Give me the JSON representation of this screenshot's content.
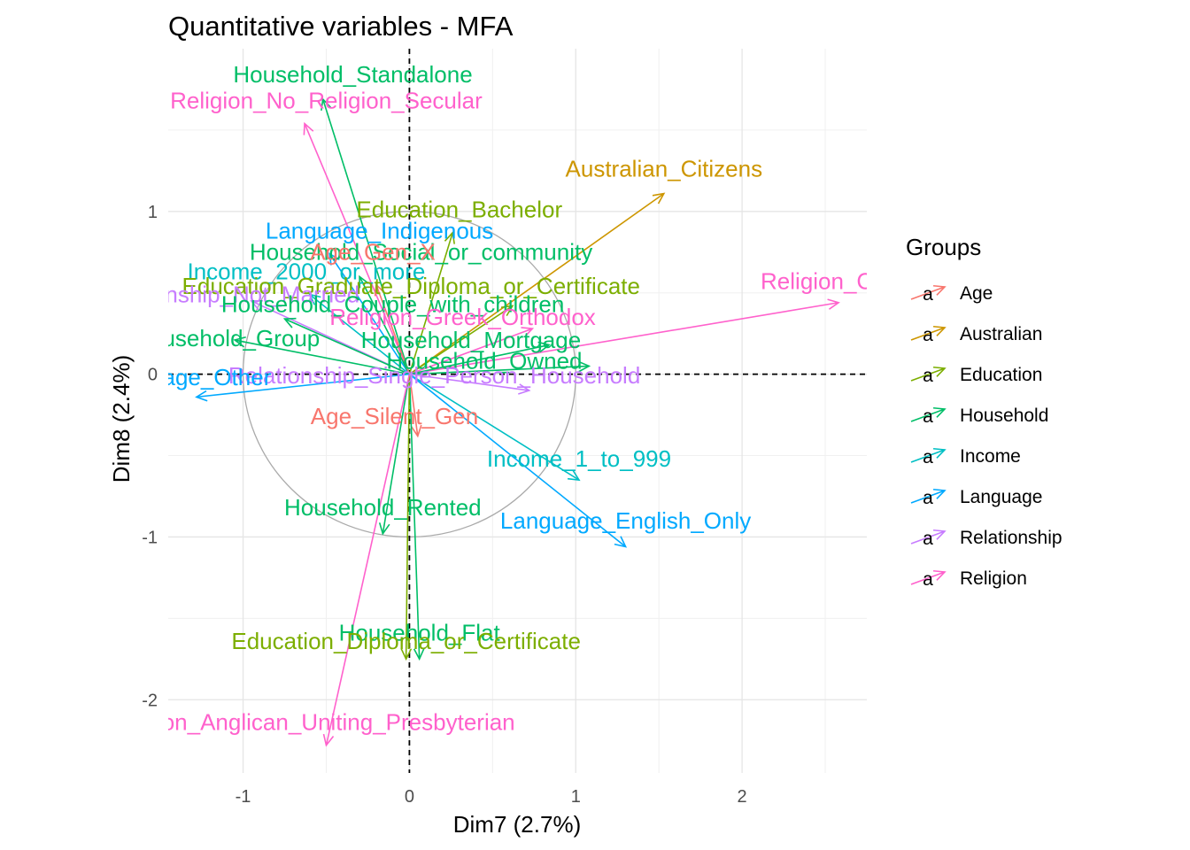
{
  "chart_data": {
    "type": "scatter",
    "title": "Quantitative variables - MFA",
    "xlabel": "Dim7 (2.7%)",
    "ylabel": "Dim8 (2.4%)",
    "xlim": [
      -1.45,
      2.75
    ],
    "ylim": [
      -2.45,
      2.0
    ],
    "x_ticks": [
      -1,
      0,
      1,
      2
    ],
    "y_ticks": [
      -2,
      -1,
      0,
      1
    ],
    "x_tick_labels": [
      "-1",
      "0",
      "1",
      "2"
    ],
    "y_tick_labels": [
      "-2",
      "-1",
      "0",
      "1"
    ],
    "grid": true,
    "correlation_circle_radius": 1,
    "legend_title": "Groups",
    "legend_position": "right",
    "groups": [
      {
        "name": "Age",
        "color": "#F8766D"
      },
      {
        "name": "Australian",
        "color": "#CD9600"
      },
      {
        "name": "Education",
        "color": "#7CAE00"
      },
      {
        "name": "Household",
        "color": "#00BE67"
      },
      {
        "name": "Income",
        "color": "#00BFC4"
      },
      {
        "name": "Language",
        "color": "#00A9FF"
      },
      {
        "name": "Relationship",
        "color": "#C77CFF"
      },
      {
        "name": "Religion",
        "color": "#FF61CC"
      }
    ],
    "variables": [
      {
        "label": "Household_Standalone",
        "group": "Household",
        "x": -0.52,
        "y": 1.69,
        "lx": -0.34,
        "ly": 1.83
      },
      {
        "label": "Religion_No_Religion_Secular",
        "group": "Religion",
        "x": -0.63,
        "y": 1.54,
        "lx": -0.5,
        "ly": 1.67
      },
      {
        "label": "Australian_Citizens",
        "group": "Australian",
        "x": 1.53,
        "y": 1.11,
        "lx": 1.53,
        "ly": 1.25
      },
      {
        "label": "Education_Bachelor",
        "group": "Education",
        "x": 0.26,
        "y": 0.87,
        "lx": 0.3,
        "ly": 1.0
      },
      {
        "label": "Language_Indigenous",
        "group": "Language",
        "x": -0.48,
        "y": 0.74,
        "lx": -0.18,
        "ly": 0.87
      },
      {
        "label": "Household_Social_or_community",
        "group": "Household",
        "x": -0.3,
        "y": 0.6,
        "lx": 0.07,
        "ly": 0.74
      },
      {
        "label": "Age_Gen_X",
        "group": "Age",
        "x": -0.2,
        "y": 0.55,
        "lx": -0.22,
        "ly": 0.74
      },
      {
        "label": "Income_2000_or_more",
        "group": "Income",
        "x": -0.6,
        "y": 0.49,
        "lx": -0.62,
        "ly": 0.62
      },
      {
        "label": "Education_Graduate_Diploma_or_Certificate",
        "group": "Education",
        "x": 0.62,
        "y": 0.42,
        "lx": 0.01,
        "ly": 0.53
      },
      {
        "label": "Religion_Catholic",
        "group": "Religion",
        "x": 2.58,
        "y": 0.44,
        "lx": 2.65,
        "ly": 0.56
      },
      {
        "label": "Relationship_Not_Married",
        "group": "Relationship",
        "x": -0.95,
        "y": 0.45,
        "lx": -1.1,
        "ly": 0.48
      },
      {
        "label": "Household_Couple_with_children",
        "group": "Household",
        "x": -0.75,
        "y": 0.34,
        "lx": -0.1,
        "ly": 0.42
      },
      {
        "label": "Religion_Greek_Orthodox",
        "group": "Religion",
        "x": 0.74,
        "y": 0.28,
        "lx": 0.32,
        "ly": 0.34
      },
      {
        "label": "Household_Mortgage",
        "group": "Household",
        "x": 0.84,
        "y": 0.18,
        "lx": 0.37,
        "ly": 0.2
      },
      {
        "label": "Household_Group",
        "group": "Household",
        "x": -1.05,
        "y": 0.21,
        "lx": -1.1,
        "ly": 0.21
      },
      {
        "label": "Household_Owned",
        "group": "Household",
        "x": 1.08,
        "y": 0.05,
        "lx": 0.45,
        "ly": 0.07
      },
      {
        "label": "Relationship_Single_Person_Household",
        "group": "Relationship",
        "x": 0.72,
        "y": -0.1,
        "lx": 0.15,
        "ly": -0.02
      },
      {
        "label": "Language_Other",
        "group": "Language",
        "x": -1.28,
        "y": -0.14,
        "lx": -1.35,
        "ly": -0.03
      },
      {
        "label": "Age_Silent_Gen",
        "group": "Age",
        "x": 0.05,
        "y": -0.38,
        "lx": -0.09,
        "ly": -0.27
      },
      {
        "label": "Income_1_to_999",
        "group": "Income",
        "x": 1.02,
        "y": -0.65,
        "lx": 1.02,
        "ly": -0.53
      },
      {
        "label": "Household_Rented",
        "group": "Household",
        "x": -0.16,
        "y": -0.98,
        "lx": -0.16,
        "ly": -0.83
      },
      {
        "label": "Language_English_Only",
        "group": "Language",
        "x": 1.3,
        "y": -1.06,
        "lx": 1.3,
        "ly": -0.91
      },
      {
        "label": "Household_Flat",
        "group": "Household",
        "x": 0.06,
        "y": -1.75,
        "lx": 0.06,
        "ly": -1.6
      },
      {
        "label": "Education_Diploma_or_Certificate",
        "group": "Education",
        "x": -0.02,
        "y": -1.75,
        "lx": -0.02,
        "ly": -1.65
      },
      {
        "label": "Religion_Anglican_Uniting_Presbyterian",
        "group": "Religion",
        "x": -0.5,
        "y": -2.28,
        "lx": -0.6,
        "ly": -2.15
      }
    ]
  }
}
